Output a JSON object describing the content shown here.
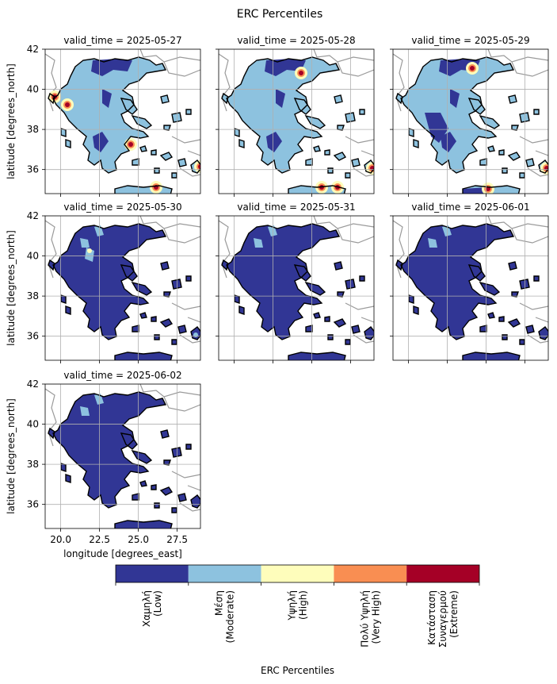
{
  "title": "ERC Percentiles",
  "panels": [
    {
      "label": "valid_time = 2025-05-27",
      "level": "mixed"
    },
    {
      "label": "valid_time = 2025-05-28",
      "level": "mixed"
    },
    {
      "label": "valid_time = 2025-05-29",
      "level": "mixed"
    },
    {
      "label": "valid_time = 2025-05-30",
      "level": "low"
    },
    {
      "label": "valid_time = 2025-05-31",
      "level": "low"
    },
    {
      "label": "valid_time = 2025-06-01",
      "level": "low"
    },
    {
      "label": "valid_time = 2025-06-02",
      "level": "low"
    }
  ],
  "axes": {
    "ylabel": "latitude [degrees_north]",
    "xlabel": "longitude [degrees_east]",
    "yticks": [
      "42",
      "40",
      "38",
      "36"
    ],
    "xticks": [
      "20.0",
      "22.5",
      "25.0",
      "27.5"
    ],
    "ylim": [
      34.8,
      42
    ],
    "xlim": [
      19,
      29
    ],
    "grid": true
  },
  "colorbar": {
    "label": "ERC Percentiles",
    "classes": [
      {
        "lines": [
          "Χαμηλή",
          "(Low)"
        ],
        "color": "#313695"
      },
      {
        "lines": [
          "Μέση",
          "(Moderate)"
        ],
        "color": "#8dc2df"
      },
      {
        "lines": [
          "Υψηλή",
          "(High)"
        ],
        "color": "#fefdbb"
      },
      {
        "lines": [
          "Πολύ Υψηλή",
          "(Very High)"
        ],
        "color": "#f98e52"
      },
      {
        "lines": [
          "Κατάσταση",
          "Συναγερμού",
          "(Extreme)"
        ],
        "color": "#a50026"
      }
    ]
  }
}
